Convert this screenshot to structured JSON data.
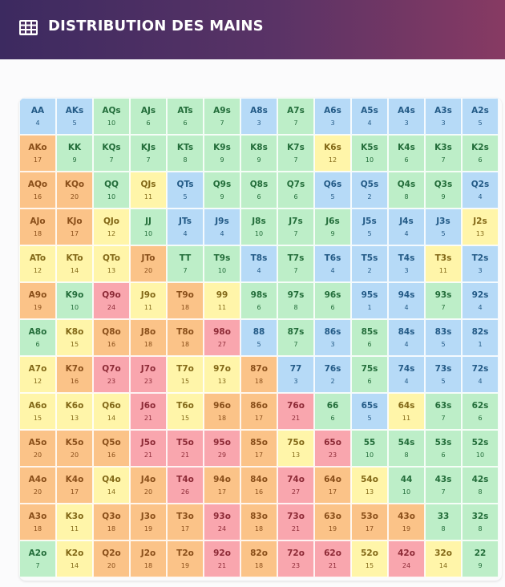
{
  "header": {
    "title": "DISTRIBUTION DES MAINS",
    "icon": "grid-table-icon"
  },
  "palette": {
    "blue": "#b6daf7",
    "green": "#bdeec8",
    "yellow": "#fff5a9",
    "orange": "#fbc388",
    "red": "#f9a6ae"
  },
  "grid": {
    "rows": [
      [
        [
          "AA",
          "4",
          "b"
        ],
        [
          "AKs",
          "5",
          "b"
        ],
        [
          "AQs",
          "10",
          "g"
        ],
        [
          "AJs",
          "6",
          "g"
        ],
        [
          "ATs",
          "6",
          "g"
        ],
        [
          "A9s",
          "7",
          "g"
        ],
        [
          "A8s",
          "3",
          "b"
        ],
        [
          "A7s",
          "7",
          "g"
        ],
        [
          "A6s",
          "3",
          "b"
        ],
        [
          "A5s",
          "4",
          "b"
        ],
        [
          "A4s",
          "3",
          "b"
        ],
        [
          "A3s",
          "3",
          "b"
        ],
        [
          "A2s",
          "5",
          "b"
        ]
      ],
      [
        [
          "AKo",
          "17",
          "o"
        ],
        [
          "KK",
          "9",
          "g"
        ],
        [
          "KQs",
          "7",
          "g"
        ],
        [
          "KJs",
          "7",
          "g"
        ],
        [
          "KTs",
          "8",
          "g"
        ],
        [
          "K9s",
          "9",
          "g"
        ],
        [
          "K8s",
          "9",
          "g"
        ],
        [
          "K7s",
          "7",
          "g"
        ],
        [
          "K6s",
          "12",
          "y"
        ],
        [
          "K5s",
          "10",
          "g"
        ],
        [
          "K4s",
          "6",
          "g"
        ],
        [
          "K3s",
          "7",
          "g"
        ],
        [
          "K2s",
          "6",
          "g"
        ]
      ],
      [
        [
          "AQo",
          "16",
          "o"
        ],
        [
          "KQo",
          "20",
          "o"
        ],
        [
          "QQ",
          "10",
          "g"
        ],
        [
          "QJs",
          "11",
          "y"
        ],
        [
          "QTs",
          "5",
          "b"
        ],
        [
          "Q9s",
          "9",
          "g"
        ],
        [
          "Q8s",
          "6",
          "g"
        ],
        [
          "Q7s",
          "6",
          "g"
        ],
        [
          "Q6s",
          "5",
          "b"
        ],
        [
          "Q5s",
          "2",
          "b"
        ],
        [
          "Q4s",
          "8",
          "g"
        ],
        [
          "Q3s",
          "9",
          "g"
        ],
        [
          "Q2s",
          "4",
          "b"
        ]
      ],
      [
        [
          "AJo",
          "18",
          "o"
        ],
        [
          "KJo",
          "17",
          "o"
        ],
        [
          "QJo",
          "12",
          "y"
        ],
        [
          "JJ",
          "10",
          "g"
        ],
        [
          "JTs",
          "4",
          "b"
        ],
        [
          "J9s",
          "4",
          "b"
        ],
        [
          "J8s",
          "10",
          "g"
        ],
        [
          "J7s",
          "7",
          "g"
        ],
        [
          "J6s",
          "9",
          "g"
        ],
        [
          "J5s",
          "5",
          "b"
        ],
        [
          "J4s",
          "4",
          "b"
        ],
        [
          "J3s",
          "5",
          "b"
        ],
        [
          "J2s",
          "13",
          "y"
        ]
      ],
      [
        [
          "ATo",
          "12",
          "y"
        ],
        [
          "KTo",
          "14",
          "y"
        ],
        [
          "QTo",
          "13",
          "y"
        ],
        [
          "JTo",
          "20",
          "o"
        ],
        [
          "TT",
          "7",
          "g"
        ],
        [
          "T9s",
          "10",
          "g"
        ],
        [
          "T8s",
          "4",
          "b"
        ],
        [
          "T7s",
          "7",
          "g"
        ],
        [
          "T6s",
          "4",
          "b"
        ],
        [
          "T5s",
          "2",
          "b"
        ],
        [
          "T4s",
          "3",
          "b"
        ],
        [
          "T3s",
          "11",
          "y"
        ],
        [
          "T2s",
          "3",
          "b"
        ]
      ],
      [
        [
          "A9o",
          "19",
          "o"
        ],
        [
          "K9o",
          "10",
          "g"
        ],
        [
          "Q9o",
          "24",
          "r"
        ],
        [
          "J9o",
          "11",
          "y"
        ],
        [
          "T9o",
          "18",
          "o"
        ],
        [
          "99",
          "11",
          "y"
        ],
        [
          "98s",
          "6",
          "g"
        ],
        [
          "97s",
          "8",
          "g"
        ],
        [
          "96s",
          "6",
          "g"
        ],
        [
          "95s",
          "1",
          "b"
        ],
        [
          "94s",
          "4",
          "b"
        ],
        [
          "93s",
          "7",
          "g"
        ],
        [
          "92s",
          "4",
          "b"
        ]
      ],
      [
        [
          "A8o",
          "6",
          "g"
        ],
        [
          "K8o",
          "15",
          "y"
        ],
        [
          "Q8o",
          "16",
          "o"
        ],
        [
          "J8o",
          "18",
          "o"
        ],
        [
          "T8o",
          "18",
          "o"
        ],
        [
          "98o",
          "27",
          "r"
        ],
        [
          "88",
          "5",
          "b"
        ],
        [
          "87s",
          "7",
          "g"
        ],
        [
          "86s",
          "3",
          "b"
        ],
        [
          "85s",
          "6",
          "g"
        ],
        [
          "84s",
          "4",
          "b"
        ],
        [
          "83s",
          "5",
          "b"
        ],
        [
          "82s",
          "1",
          "b"
        ]
      ],
      [
        [
          "A7o",
          "12",
          "y"
        ],
        [
          "K7o",
          "16",
          "o"
        ],
        [
          "Q7o",
          "23",
          "r"
        ],
        [
          "J7o",
          "23",
          "r"
        ],
        [
          "T7o",
          "15",
          "y"
        ],
        [
          "97o",
          "13",
          "y"
        ],
        [
          "87o",
          "18",
          "o"
        ],
        [
          "77",
          "3",
          "b"
        ],
        [
          "76s",
          "2",
          "b"
        ],
        [
          "75s",
          "6",
          "g"
        ],
        [
          "74s",
          "4",
          "b"
        ],
        [
          "73s",
          "5",
          "b"
        ],
        [
          "72s",
          "4",
          "b"
        ]
      ],
      [
        [
          "A6o",
          "15",
          "y"
        ],
        [
          "K6o",
          "13",
          "y"
        ],
        [
          "Q6o",
          "14",
          "y"
        ],
        [
          "J6o",
          "21",
          "r"
        ],
        [
          "T6o",
          "15",
          "y"
        ],
        [
          "96o",
          "18",
          "o"
        ],
        [
          "86o",
          "17",
          "o"
        ],
        [
          "76o",
          "21",
          "r"
        ],
        [
          "66",
          "6",
          "g"
        ],
        [
          "65s",
          "5",
          "b"
        ],
        [
          "64s",
          "11",
          "y"
        ],
        [
          "63s",
          "7",
          "g"
        ],
        [
          "62s",
          "6",
          "g"
        ]
      ],
      [
        [
          "A5o",
          "20",
          "o"
        ],
        [
          "K5o",
          "20",
          "o"
        ],
        [
          "Q5o",
          "16",
          "o"
        ],
        [
          "J5o",
          "21",
          "r"
        ],
        [
          "T5o",
          "21",
          "r"
        ],
        [
          "95o",
          "29",
          "r"
        ],
        [
          "85o",
          "17",
          "o"
        ],
        [
          "75o",
          "13",
          "y"
        ],
        [
          "65o",
          "23",
          "r"
        ],
        [
          "55",
          "10",
          "g"
        ],
        [
          "54s",
          "8",
          "g"
        ],
        [
          "53s",
          "6",
          "g"
        ],
        [
          "52s",
          "10",
          "g"
        ]
      ],
      [
        [
          "A4o",
          "20",
          "o"
        ],
        [
          "K4o",
          "17",
          "o"
        ],
        [
          "Q4o",
          "14",
          "y"
        ],
        [
          "J4o",
          "20",
          "o"
        ],
        [
          "T4o",
          "26",
          "r"
        ],
        [
          "94o",
          "17",
          "o"
        ],
        [
          "84o",
          "16",
          "o"
        ],
        [
          "74o",
          "27",
          "r"
        ],
        [
          "64o",
          "17",
          "o"
        ],
        [
          "54o",
          "13",
          "y"
        ],
        [
          "44",
          "10",
          "g"
        ],
        [
          "43s",
          "7",
          "g"
        ],
        [
          "42s",
          "8",
          "g"
        ]
      ],
      [
        [
          "A3o",
          "18",
          "o"
        ],
        [
          "K3o",
          "11",
          "y"
        ],
        [
          "Q3o",
          "18",
          "o"
        ],
        [
          "J3o",
          "19",
          "o"
        ],
        [
          "T3o",
          "17",
          "o"
        ],
        [
          "93o",
          "24",
          "r"
        ],
        [
          "83o",
          "18",
          "o"
        ],
        [
          "73o",
          "21",
          "r"
        ],
        [
          "63o",
          "19",
          "o"
        ],
        [
          "53o",
          "17",
          "o"
        ],
        [
          "43o",
          "19",
          "o"
        ],
        [
          "33",
          "8",
          "g"
        ],
        [
          "32s",
          "8",
          "g"
        ]
      ],
      [
        [
          "A2o",
          "7",
          "g"
        ],
        [
          "K2o",
          "14",
          "y"
        ],
        [
          "Q2o",
          "20",
          "o"
        ],
        [
          "J2o",
          "18",
          "o"
        ],
        [
          "T2o",
          "19",
          "o"
        ],
        [
          "92o",
          "21",
          "r"
        ],
        [
          "82o",
          "18",
          "o"
        ],
        [
          "72o",
          "23",
          "r"
        ],
        [
          "62o",
          "21",
          "r"
        ],
        [
          "52o",
          "15",
          "y"
        ],
        [
          "42o",
          "24",
          "r"
        ],
        [
          "32o",
          "14",
          "y"
        ],
        [
          "22",
          "9",
          "g"
        ]
      ]
    ]
  }
}
